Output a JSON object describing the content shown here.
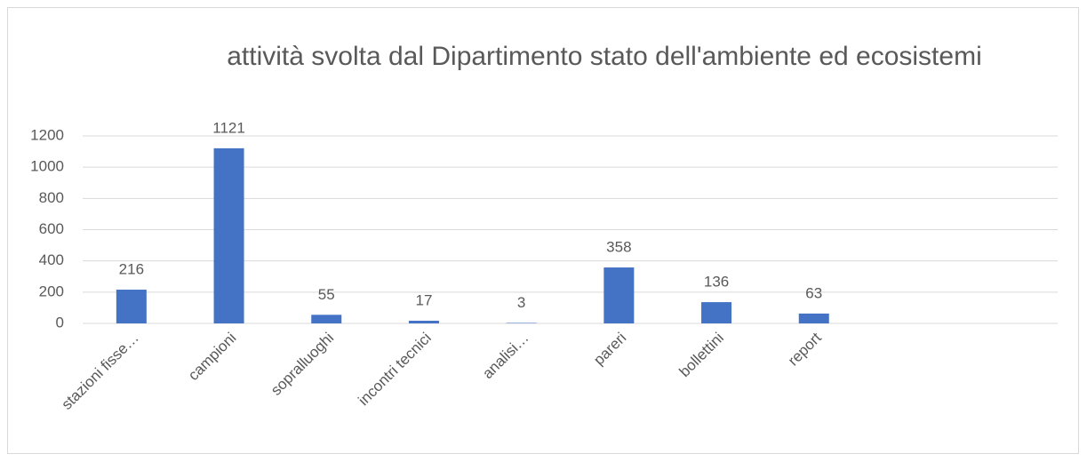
{
  "chart_data": {
    "type": "bar",
    "title": "attività svolta dal Dipartimento stato dell'ambiente ed ecosistemi",
    "categories": [
      "stazioni fisse…",
      "campioni",
      "sopralluoghi",
      "incontri tecnici",
      "analisi…",
      "pareri",
      "bollettini",
      "report",
      null,
      null
    ],
    "values": [
      216,
      1121,
      55,
      17,
      3,
      358,
      136,
      63,
      null,
      null
    ],
    "color": "#4472c4",
    "ylim": [
      0,
      1200
    ],
    "yticks": [
      0,
      200,
      400,
      600,
      800,
      1000,
      1200
    ],
    "grid": true
  }
}
